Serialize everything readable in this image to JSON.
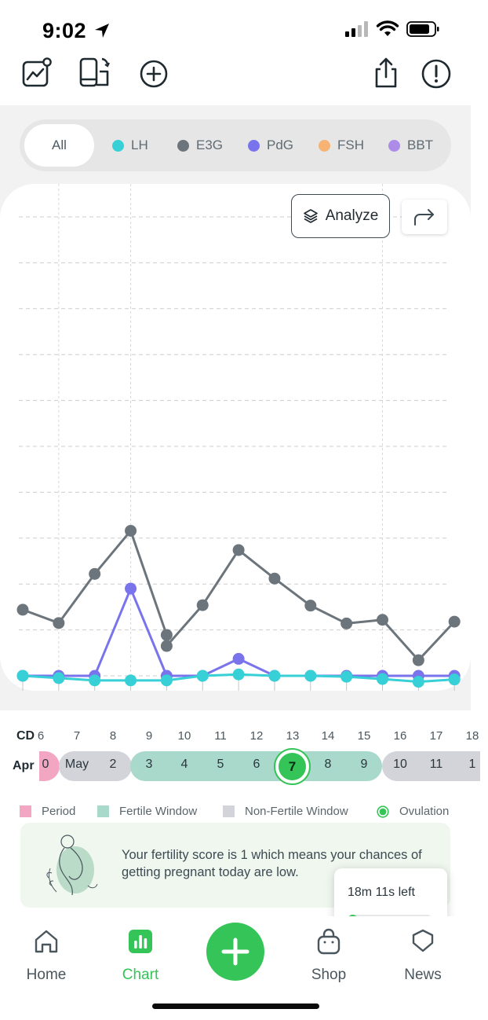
{
  "status_bar": {
    "time": "9:02"
  },
  "toolbar": {
    "icons": [
      "trend-icon",
      "devices-sync-icon",
      "add-circle-icon",
      "share-icon",
      "alert-icon"
    ]
  },
  "filters": [
    {
      "label": "All",
      "color": "",
      "active": true
    },
    {
      "label": "LH",
      "color": "#36d0d6"
    },
    {
      "label": "E3G",
      "color": "#6c757c"
    },
    {
      "label": "PdG",
      "color": "#7a74ec"
    },
    {
      "label": "FSH",
      "color": "#f7b374"
    },
    {
      "label": "BBT",
      "color": "#ad8ce8"
    }
  ],
  "analyze_label": "Analyze",
  "chart_data": {
    "type": "line",
    "x": [
      "6",
      "7",
      "8",
      "9",
      "10",
      "11",
      "12",
      "13",
      "14",
      "15",
      "16",
      "17",
      "18"
    ],
    "series": [
      {
        "name": "E3G",
        "color": "#6c757c",
        "values": [
          [
            6,
            1.44
          ],
          [
            7,
            1.15
          ],
          [
            8,
            2.22
          ],
          [
            9,
            3.16
          ],
          [
            10,
            0.89
          ],
          [
            10,
            0.65
          ],
          [
            11,
            1.54
          ],
          [
            12,
            2.74
          ],
          [
            13,
            2.12
          ],
          [
            14,
            1.53
          ],
          [
            15,
            1.14
          ],
          [
            16,
            1.22
          ],
          [
            17,
            0.34
          ],
          [
            18,
            1.18
          ]
        ]
      },
      {
        "name": "PdG",
        "color": "#7a74ec",
        "values": [
          [
            6,
            0.0
          ],
          [
            7,
            0.0
          ],
          [
            8,
            0.0
          ],
          [
            9,
            1.9
          ],
          [
            10,
            0.0
          ],
          [
            11,
            0.0
          ],
          [
            12,
            0.37
          ],
          [
            13,
            0.0
          ],
          [
            14,
            0.0
          ],
          [
            15,
            0.0
          ],
          [
            16,
            0.0
          ],
          [
            17,
            0.0
          ],
          [
            18,
            0.0
          ]
        ]
      },
      {
        "name": "LH",
        "color": "#36d0d6",
        "values": [
          [
            6,
            0.0
          ],
          [
            7,
            -0.05
          ],
          [
            8,
            -0.1
          ],
          [
            9,
            -0.1
          ],
          [
            10,
            -0.1
          ],
          [
            11,
            0.0
          ],
          [
            12,
            0.03
          ],
          [
            13,
            0.0
          ],
          [
            14,
            0.0
          ],
          [
            15,
            -0.02
          ],
          [
            16,
            -0.07
          ],
          [
            17,
            -0.13
          ],
          [
            18,
            -0.08
          ]
        ]
      }
    ],
    "ylim": [
      0,
      10
    ],
    "grid": true,
    "title": "",
    "xlabel": "",
    "ylabel": ""
  },
  "cycle": {
    "cd_label": "CD",
    "month_label": "Apr",
    "cd_numbers": [
      "6",
      "7",
      "8",
      "9",
      "10",
      "11",
      "12",
      "13",
      "14",
      "15",
      "16",
      "17",
      "18"
    ],
    "days": [
      "0",
      "May",
      "2",
      "3",
      "4",
      "5",
      "6",
      "7",
      "8",
      "9",
      "10",
      "11",
      "1"
    ],
    "day_types": [
      "period",
      "non-fertile",
      "non-fertile",
      "fertile",
      "fertile",
      "fertile",
      "fertile",
      "ovulation",
      "fertile",
      "fertile",
      "non-fertile",
      "non-fertile",
      "non-fertile"
    ]
  },
  "legend": [
    {
      "label": "Period",
      "color": "#f2a6c2",
      "shape": "square"
    },
    {
      "label": "Fertile Window",
      "color": "#a8d9cb",
      "shape": "square"
    },
    {
      "label": "Non-Fertile Window",
      "color": "#d3d4d9",
      "shape": "square"
    },
    {
      "label": "Ovulation",
      "color": "#34c457",
      "shape": "ring"
    }
  ],
  "score": {
    "text": "Your fertility score is 1 which means your chances of getting pregnant today are low."
  },
  "timer": {
    "text": "18m 11s left",
    "progress": 0.12
  },
  "nav": {
    "items": [
      {
        "label": "Home",
        "icon": "home-icon"
      },
      {
        "label": "Chart",
        "icon": "chart-icon",
        "active": true
      },
      {
        "label": "Shop",
        "icon": "shopping-bag-icon"
      },
      {
        "label": "News",
        "icon": "news-icon"
      }
    ],
    "fab_icon": "plus-icon"
  }
}
